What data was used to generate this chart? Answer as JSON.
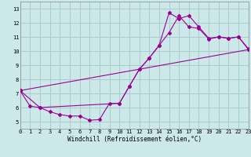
{
  "xlabel": "Windchill (Refroidissement éolien,°C)",
  "bg_color": "#cce8e8",
  "grid_color": "#aacccc",
  "line_color": "#990099",
  "xlim": [
    0,
    23
  ],
  "ylim": [
    4.5,
    13.5
  ],
  "yticks": [
    5,
    6,
    7,
    8,
    9,
    10,
    11,
    12,
    13
  ],
  "xticks": [
    0,
    1,
    2,
    3,
    4,
    5,
    6,
    7,
    8,
    9,
    10,
    11,
    12,
    13,
    14,
    15,
    16,
    17,
    18,
    19,
    20,
    21,
    22,
    23
  ],
  "line1_x": [
    0,
    1,
    2,
    3,
    4,
    5,
    6,
    7,
    8,
    9,
    10,
    11,
    12,
    13,
    14,
    15,
    16,
    17,
    18,
    19,
    20,
    21,
    22,
    23
  ],
  "line1_y": [
    7.2,
    6.1,
    6.0,
    5.7,
    5.5,
    5.4,
    5.4,
    5.1,
    5.15,
    6.3,
    6.3,
    7.5,
    8.7,
    9.5,
    10.4,
    12.7,
    12.3,
    12.5,
    11.7,
    10.9,
    11.0,
    10.9,
    11.0,
    10.1
  ],
  "line2_x": [
    0,
    2,
    10,
    11,
    12,
    13,
    14,
    15,
    16,
    17,
    18,
    19,
    20,
    21,
    22,
    23
  ],
  "line2_y": [
    7.2,
    6.0,
    6.3,
    7.5,
    8.7,
    9.5,
    10.4,
    11.3,
    12.5,
    11.7,
    11.6,
    10.85,
    11.0,
    10.9,
    11.0,
    10.15
  ],
  "line3_x": [
    0,
    23
  ],
  "line3_y": [
    7.2,
    10.1
  ]
}
